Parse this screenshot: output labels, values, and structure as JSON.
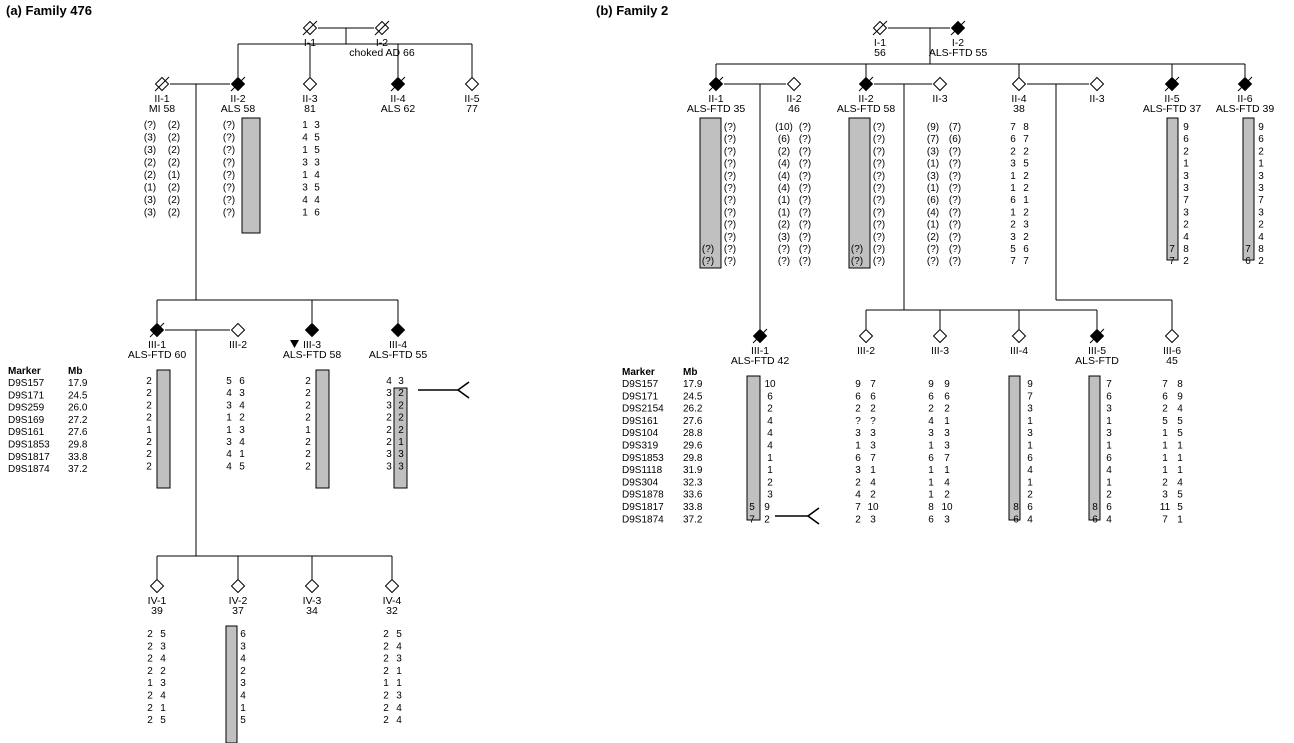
{
  "colors": {
    "affected": "#000000",
    "line": "#000000",
    "haplobar": "#c0c0c0"
  },
  "panelA": {
    "title": "(a) Family 476",
    "marker_header": "Marker",
    "mb_header": "Mb",
    "markers": [
      {
        "name": "D9S157",
        "mb": "17.9"
      },
      {
        "name": "D9S171",
        "mb": "24.5"
      },
      {
        "name": "D9S259",
        "mb": "26.0"
      },
      {
        "name": "D9S169",
        "mb": "27.2"
      },
      {
        "name": "D9S161",
        "mb": "27.6"
      },
      {
        "name": "D9S1853",
        "mb": "29.8"
      },
      {
        "name": "D9S1817",
        "mb": "33.8"
      },
      {
        "name": "D9S1874",
        "mb": "37.2"
      }
    ],
    "individuals": {
      "I1": {
        "id": "I-1",
        "info": "",
        "affected": false,
        "deceased": true
      },
      "I2": {
        "id": "I-2",
        "info": "choked AD 66",
        "affected": false,
        "deceased": true
      },
      "II1": {
        "id": "II-1",
        "info": "MI 58",
        "affected": false,
        "deceased": true,
        "left": [
          "(?)",
          "(3)",
          "(3)",
          "(2)",
          "(2)",
          "(1)",
          "(3)",
          "(3)"
        ],
        "right": [
          "(2)",
          "(2)",
          "(2)",
          "(2)",
          "(1)",
          "(2)",
          "(2)",
          "(2)"
        ]
      },
      "II2": {
        "id": "II-2",
        "info": "ALS 58",
        "affected": true,
        "deceased": true,
        "left": [
          "(?)",
          "(?)",
          "(?)",
          "(?)",
          "(?)",
          "(?)",
          "(?)",
          "(?)"
        ]
      },
      "II3": {
        "id": "II-3",
        "info": "81",
        "affected": false,
        "deceased": false,
        "left": [
          "1",
          "4",
          "1",
          "3",
          "1",
          "3",
          "4",
          "1"
        ],
        "right": [
          "3",
          "5",
          "5",
          "3",
          "4",
          "5",
          "4",
          "6"
        ]
      },
      "II4": {
        "id": "II-4",
        "info": "ALS 62",
        "affected": true,
        "deceased": true
      },
      "II5": {
        "id": "II-5",
        "info": "77",
        "affected": false,
        "deceased": false
      },
      "III1": {
        "id": "III-1",
        "info": "ALS-FTD 60",
        "affected": true,
        "deceased": true,
        "left": [
          "2",
          "2",
          "2",
          "2",
          "1",
          "2",
          "2",
          "2"
        ]
      },
      "III2": {
        "id": "III-2",
        "info": "",
        "affected": false,
        "deceased": false,
        "left": [
          "5",
          "4",
          "3",
          "1",
          "1",
          "3",
          "4",
          "4"
        ],
        "right": [
          "6",
          "3",
          "4",
          "2",
          "3",
          "4",
          "1",
          "5"
        ]
      },
      "III3": {
        "id": "III-3",
        "info": "ALS-FTD 58",
        "affected": true,
        "deceased": false,
        "left": [
          "2",
          "2",
          "2",
          "2",
          "1",
          "2",
          "2",
          "2"
        ]
      },
      "III4": {
        "id": "III-4",
        "info": "ALS-FTD 55",
        "affected": true,
        "deceased": false,
        "left": [
          "4",
          "3",
          "3",
          "2",
          "2",
          "2",
          "3",
          "3"
        ],
        "bar": [
          "3",
          "2",
          "2",
          "2",
          "2",
          "1",
          "3",
          "3"
        ]
      },
      "IV1": {
        "id": "IV-1",
        "info": "39",
        "affected": false,
        "deceased": false,
        "left": [
          "2",
          "2",
          "2",
          "2",
          "1",
          "2",
          "2",
          "2"
        ],
        "right": [
          "5",
          "3",
          "4",
          "2",
          "3",
          "4",
          "1",
          "5"
        ]
      },
      "IV2": {
        "id": "IV-2",
        "info": "37",
        "affected": false,
        "deceased": false,
        "bar": [
          "6",
          "3",
          "4",
          "2",
          "3",
          "4",
          "1",
          "5"
        ]
      },
      "IV3": {
        "id": "IV-3",
        "info": "34",
        "affected": false,
        "deceased": false
      },
      "IV4": {
        "id": "IV-4",
        "info": "32",
        "affected": false,
        "deceased": false,
        "left": [
          "2",
          "2",
          "2",
          "2",
          "1",
          "2",
          "2",
          "2"
        ],
        "right": [
          "5",
          "4",
          "3",
          "1",
          "1",
          "3",
          "4",
          "4"
        ]
      }
    }
  },
  "panelB": {
    "title": "(b) Family 2",
    "marker_header": "Marker",
    "mb_header": "Mb",
    "markers": [
      {
        "name": "D9S157",
        "mb": "17.9"
      },
      {
        "name": "D9S171",
        "mb": "24.5"
      },
      {
        "name": "D9S2154",
        "mb": "26.2"
      },
      {
        "name": "D9S161",
        "mb": "27.6"
      },
      {
        "name": "D9S104",
        "mb": "28.8"
      },
      {
        "name": "D9S319",
        "mb": "29.6"
      },
      {
        "name": "D9S1853",
        "mb": "29.8"
      },
      {
        "name": "D9S1118",
        "mb": "31.9"
      },
      {
        "name": "D9S304",
        "mb": "32.3"
      },
      {
        "name": "D9S1878",
        "mb": "33.6"
      },
      {
        "name": "D9S1817",
        "mb": "33.8"
      },
      {
        "name": "D9S1874",
        "mb": "37.2"
      }
    ],
    "individuals": {
      "I1": {
        "id": "I-1",
        "info": "56",
        "affected": false,
        "deceased": true
      },
      "I2": {
        "id": "I-2",
        "info": "ALS-FTD 55",
        "affected": true,
        "deceased": true
      },
      "II1": {
        "id": "II-1",
        "info": "ALS-FTD 35",
        "affected": true,
        "deceased": true,
        "left": [
          "",
          "",
          "",
          "",
          "",
          "",
          "",
          "",
          "",
          "",
          "(?)",
          "(?)"
        ],
        "right": [
          "(?)",
          "(?)",
          "(?)",
          "(?)",
          "(?)",
          "(?)",
          "(?)",
          "(?)",
          "(?)",
          "(?)",
          "(?)",
          "(?)"
        ]
      },
      "II2": {
        "id": "II-2",
        "info": "46",
        "affected": false,
        "deceased": false,
        "left": [
          "(10)",
          "(6)",
          "(2)",
          "(4)",
          "(4)",
          "(4)",
          "(1)",
          "(1)",
          "(2)",
          "(3)",
          "(?)",
          "(?)"
        ],
        "right": [
          "(?)",
          "(?)",
          "(?)",
          "(?)",
          "(?)",
          "(?)",
          "(?)",
          "(?)",
          "(?)",
          "(?)",
          "(?)",
          "(?)"
        ]
      },
      "II2b": {
        "id": "II-2",
        "info": "ALS-FTD 58",
        "affected": true,
        "deceased": true,
        "left": [
          "",
          "",
          "",
          "",
          "",
          "",
          "",
          "",
          "",
          "",
          "(?)",
          "(?)"
        ],
        "right": [
          "(?)",
          "(?)",
          "(?)",
          "(?)",
          "(?)",
          "(?)",
          "(?)",
          "(?)",
          "(?)",
          "(?)",
          "(?)",
          "(?)"
        ]
      },
      "II3": {
        "id": "II-3",
        "info": "",
        "affected": false,
        "deceased": false,
        "left": [
          "(9)",
          "(7)",
          "(3)",
          "(1)",
          "(3)",
          "(1)",
          "(6)",
          "(4)",
          "(1)",
          "(2)",
          "(?)",
          "(?)"
        ],
        "right": [
          "(7)",
          "(6)",
          "(?)",
          "(?)",
          "(?)",
          "(?)",
          "(?)",
          "(?)",
          "(?)",
          "(?)",
          "(?)",
          "(?)"
        ]
      },
      "II4": {
        "id": "II-4",
        "info": "38",
        "affected": false,
        "deceased": false,
        "left": [
          "7",
          "6",
          "2",
          "3",
          "1",
          "1",
          "6",
          "1",
          "2",
          "3",
          "5",
          "7"
        ],
        "right": [
          "8",
          "7",
          "2",
          "5",
          "2",
          "2",
          "1",
          "2",
          "3",
          "2",
          "6",
          "7"
        ]
      },
      "II3b": {
        "id": "II-3",
        "info": "",
        "affected": false,
        "deceased": false
      },
      "II5": {
        "id": "II-5",
        "info": "ALS-FTD 37",
        "affected": true,
        "deceased": true,
        "bar": [
          "9",
          "6",
          "2",
          "1",
          "3",
          "3",
          "7",
          "3",
          "2",
          "4",
          "",
          ""
        ],
        "left": [
          "",
          "",
          "",
          "",
          "",
          "",
          "",
          "",
          "",
          "",
          "7",
          "7"
        ],
        "right": [
          "",
          "",
          "",
          "",
          "",
          "",
          "",
          "",
          "",
          "",
          "8",
          "2"
        ]
      },
      "II6": {
        "id": "II-6",
        "info": "ALS-FTD 39",
        "affected": true,
        "deceased": true,
        "bar": [
          "9",
          "6",
          "2",
          "1",
          "3",
          "3",
          "7",
          "3",
          "2",
          "4",
          "",
          ""
        ],
        "left": [
          "",
          "",
          "",
          "",
          "",
          "",
          "",
          "",
          "",
          "",
          "7",
          "6"
        ],
        "right": [
          "",
          "",
          "",
          "",
          "",
          "",
          "",
          "",
          "",
          "",
          "8",
          "2"
        ]
      },
      "III1": {
        "id": "III-1",
        "info": "ALS-FTD 42",
        "affected": true,
        "deceased": true,
        "bar": [
          "10",
          "6",
          "2",
          "4",
          "4",
          "4",
          "1",
          "1",
          "2",
          "3",
          "",
          ""
        ],
        "left": [
          "",
          "",
          "",
          "",
          "",
          "",
          "",
          "",
          "",
          "",
          "5",
          "7"
        ],
        "right": [
          "",
          "",
          "",
          "",
          "",
          "",
          "",
          "",
          "",
          "",
          "9",
          "2"
        ]
      },
      "III2": {
        "id": "III-2",
        "info": "",
        "affected": false,
        "deceased": false,
        "left": [
          "9",
          "6",
          "2",
          "?",
          "3",
          "1",
          "6",
          "3",
          "2",
          "4",
          "7",
          "2"
        ],
        "right": [
          "7",
          "6",
          "2",
          "?",
          "3",
          "3",
          "7",
          "1",
          "4",
          "2",
          "10",
          "3"
        ]
      },
      "III3": {
        "id": "III-3",
        "info": "",
        "affected": false,
        "deceased": false,
        "left": [
          "9",
          "6",
          "2",
          "4",
          "3",
          "1",
          "6",
          "1",
          "1",
          "1",
          "8",
          "6"
        ],
        "right": [
          "9",
          "6",
          "2",
          "1",
          "3",
          "3",
          "7",
          "1",
          "4",
          "2",
          "10",
          "3"
        ]
      },
      "III4": {
        "id": "III-4",
        "info": "",
        "affected": false,
        "deceased": false,
        "bar": [
          "9",
          "7",
          "3",
          "1",
          "3",
          "1",
          "6",
          "4",
          "1",
          "2",
          "",
          ""
        ],
        "left": [
          "",
          "",
          "",
          "",
          "",
          "",
          "",
          "",
          "",
          "",
          "8",
          "6"
        ],
        "right": [
          "",
          "",
          "",
          "",
          "",
          "",
          "",
          "",
          "",
          "",
          "6",
          "4"
        ]
      },
      "III5": {
        "id": "III-5",
        "info": "ALS-FTD",
        "affected": true,
        "deceased": true,
        "bar": [
          "7",
          "6",
          "3",
          "1",
          "3",
          "1",
          "6",
          "4",
          "1",
          "2",
          "",
          ""
        ],
        "left": [
          "",
          "",
          "",
          "",
          "",
          "",
          "",
          "",
          "",
          "",
          "8",
          "6"
        ],
        "right": [
          "",
          "",
          "",
          "",
          "",
          "",
          "",
          "",
          "",
          "",
          "6",
          "4"
        ]
      },
      "III6": {
        "id": "III-6",
        "info": "45",
        "affected": false,
        "deceased": false,
        "left": [
          "7",
          "6",
          "2",
          "5",
          "1",
          "1",
          "1",
          "1",
          "2",
          "3",
          "11",
          "7"
        ],
        "right": [
          "8",
          "9",
          "4",
          "5",
          "5",
          "1",
          "1",
          "1",
          "4",
          "5",
          "5",
          "1"
        ]
      }
    }
  }
}
